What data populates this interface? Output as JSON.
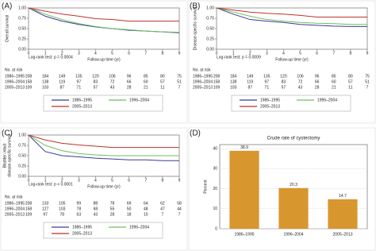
{
  "chart_data": [
    {
      "type": "line",
      "panel": "(A)",
      "ylabel": [
        "Overall survival"
      ],
      "xlabel": "Follow-up time (yr)",
      "annotation": "Log-rank test: p = 0.0004",
      "x": [
        0,
        1,
        2,
        3,
        4,
        5,
        6,
        7,
        8,
        9
      ],
      "xlim": [
        0,
        9
      ],
      "xticks": [
        0,
        1,
        2,
        3,
        4,
        5,
        6,
        7,
        8,
        9
      ],
      "ylim": [
        0,
        1
      ],
      "yticks": [
        {
          "value": 0,
          "label": "0.00"
        },
        {
          "value": 0.25,
          "label": "0.25"
        },
        {
          "value": 0.5,
          "label": "0.50"
        },
        {
          "value": 0.75,
          "label": "0.75"
        },
        {
          "value": 1,
          "label": "1.00"
        }
      ],
      "series": [
        {
          "name": "1986–1995",
          "color": "#3a3a9a",
          "values": [
            1,
            0.8,
            0.68,
            0.6,
            0.54,
            0.5,
            0.46,
            0.44,
            0.42,
            0.4
          ]
        },
        {
          "name": "1996–2004",
          "color": "#6cbf5c",
          "values": [
            1,
            0.85,
            0.72,
            0.62,
            0.55,
            0.5,
            0.47,
            0.44,
            0.42,
            0.41
          ]
        },
        {
          "name": "2005–2013",
          "color": "#c0322b",
          "values": [
            1,
            0.92,
            0.85,
            0.8,
            0.74,
            0.72,
            0.68,
            0.68,
            0.68,
            0.68
          ]
        }
      ],
      "risk_table": {
        "title": "No. at risk",
        "rows": [
          [
            "208",
            "184",
            "149",
            "135",
            "120",
            "106",
            "96",
            "85",
            "80",
            "75"
          ],
          [
            "158",
            "138",
            "119",
            "97",
            "83",
            "72",
            "66",
            "60",
            "57",
            "51"
          ],
          [
            "109",
            "103",
            "87",
            "71",
            "57",
            "43",
            "28",
            "21",
            "11",
            "7"
          ]
        ]
      }
    },
    {
      "type": "line",
      "panel": "(B)",
      "ylabel": [
        "Disease-specific survival"
      ],
      "xlabel": "Follow-up time (yr)",
      "annotation": "Log-rank test: p = 0.0009",
      "x": [
        0,
        1,
        2,
        3,
        4,
        5,
        6,
        7,
        8,
        9
      ],
      "xlim": [
        0,
        9
      ],
      "xticks": [
        0,
        1,
        2,
        3,
        4,
        5,
        6,
        7,
        8,
        9
      ],
      "ylim": [
        0,
        1
      ],
      "yticks": [
        {
          "value": 0,
          "label": "0.00"
        },
        {
          "value": 0.25,
          "label": "0.25"
        },
        {
          "value": 0.5,
          "label": "0.50"
        },
        {
          "value": 0.75,
          "label": "0.75"
        },
        {
          "value": 1,
          "label": "1.00"
        }
      ],
      "series": [
        {
          "name": "1986–1995",
          "color": "#3a3a9a",
          "values": [
            1,
            0.85,
            0.72,
            0.68,
            0.65,
            0.6,
            0.58,
            0.56,
            0.55,
            0.55
          ]
        },
        {
          "name": "1996–2004",
          "color": "#6cbf5c",
          "values": [
            1,
            0.9,
            0.8,
            0.72,
            0.68,
            0.65,
            0.63,
            0.62,
            0.6,
            0.6
          ]
        },
        {
          "name": "2005–2013",
          "color": "#c0322b",
          "values": [
            1,
            0.95,
            0.9,
            0.87,
            0.85,
            0.82,
            0.78,
            0.78,
            0.78,
            0.78
          ]
        }
      ],
      "risk_table": {
        "title": "No. at risk",
        "rows": [
          [
            "208",
            "184",
            "149",
            "135",
            "120",
            "106",
            "96",
            "85",
            "80",
            "75"
          ],
          [
            "158",
            "138",
            "119",
            "97",
            "83",
            "72",
            "66",
            "60",
            "57",
            "51"
          ],
          [
            "109",
            "103",
            "87",
            "71",
            "57",
            "43",
            "28",
            "21",
            "11",
            "7"
          ]
        ]
      }
    },
    {
      "type": "line",
      "panel": "(C)",
      "ylabel": [
        "Bladder-intact",
        "disease-specific survival"
      ],
      "xlabel": "Follow-up time (yr)",
      "annotation": "Log-rank test: p < 0.0001",
      "x": [
        0,
        1,
        2,
        3,
        4,
        5,
        6,
        7,
        8,
        9
      ],
      "xlim": [
        0,
        9
      ],
      "xticks": [
        0,
        1,
        2,
        3,
        4,
        5,
        6,
        7,
        8,
        9
      ],
      "ylim": [
        0,
        1
      ],
      "yticks": [
        {
          "value": 0,
          "label": "0.00"
        },
        {
          "value": 0.25,
          "label": "0.25"
        },
        {
          "value": 0.5,
          "label": "0.50"
        },
        {
          "value": 0.75,
          "label": "0.75"
        },
        {
          "value": 1,
          "label": "1.00"
        }
      ],
      "series": [
        {
          "name": "1986–1995",
          "color": "#3a3a9a",
          "values": [
            1,
            0.6,
            0.5,
            0.47,
            0.44,
            0.42,
            0.4,
            0.4,
            0.38,
            0.38
          ]
        },
        {
          "name": "1996–2004",
          "color": "#6cbf5c",
          "values": [
            1,
            0.75,
            0.62,
            0.55,
            0.52,
            0.5,
            0.5,
            0.5,
            0.5,
            0.5
          ]
        },
        {
          "name": "2005–2013",
          "color": "#c0322b",
          "values": [
            1,
            0.88,
            0.8,
            0.76,
            0.73,
            0.7,
            0.7,
            0.7,
            0.7,
            0.7
          ]
        }
      ],
      "risk_table": {
        "title": "No. at risk",
        "rows": [
          [
            "208",
            "133",
            "105",
            "99",
            "88",
            "78",
            "69",
            "64",
            "62",
            "58"
          ],
          [
            "158",
            "127",
            "103",
            "78",
            "68",
            "55",
            "50",
            "48",
            "47",
            "44"
          ],
          [
            "109",
            "97",
            "78",
            "63",
            "43",
            "28",
            "18",
            "10",
            "7",
            "7"
          ]
        ]
      }
    },
    {
      "type": "bar",
      "panel": "(D)",
      "title": "Crude rate of cystectomy",
      "ylabel": [
        "Percent"
      ],
      "categories": [
        "1986–1995",
        "1996–2004",
        "2005–2013"
      ],
      "values": [
        38.9,
        20.3,
        14.7
      ],
      "color": "#d8962f",
      "ylim": [
        0,
        42
      ],
      "yticks": [
        0,
        10,
        20,
        30,
        40
      ],
      "grid": true
    }
  ]
}
